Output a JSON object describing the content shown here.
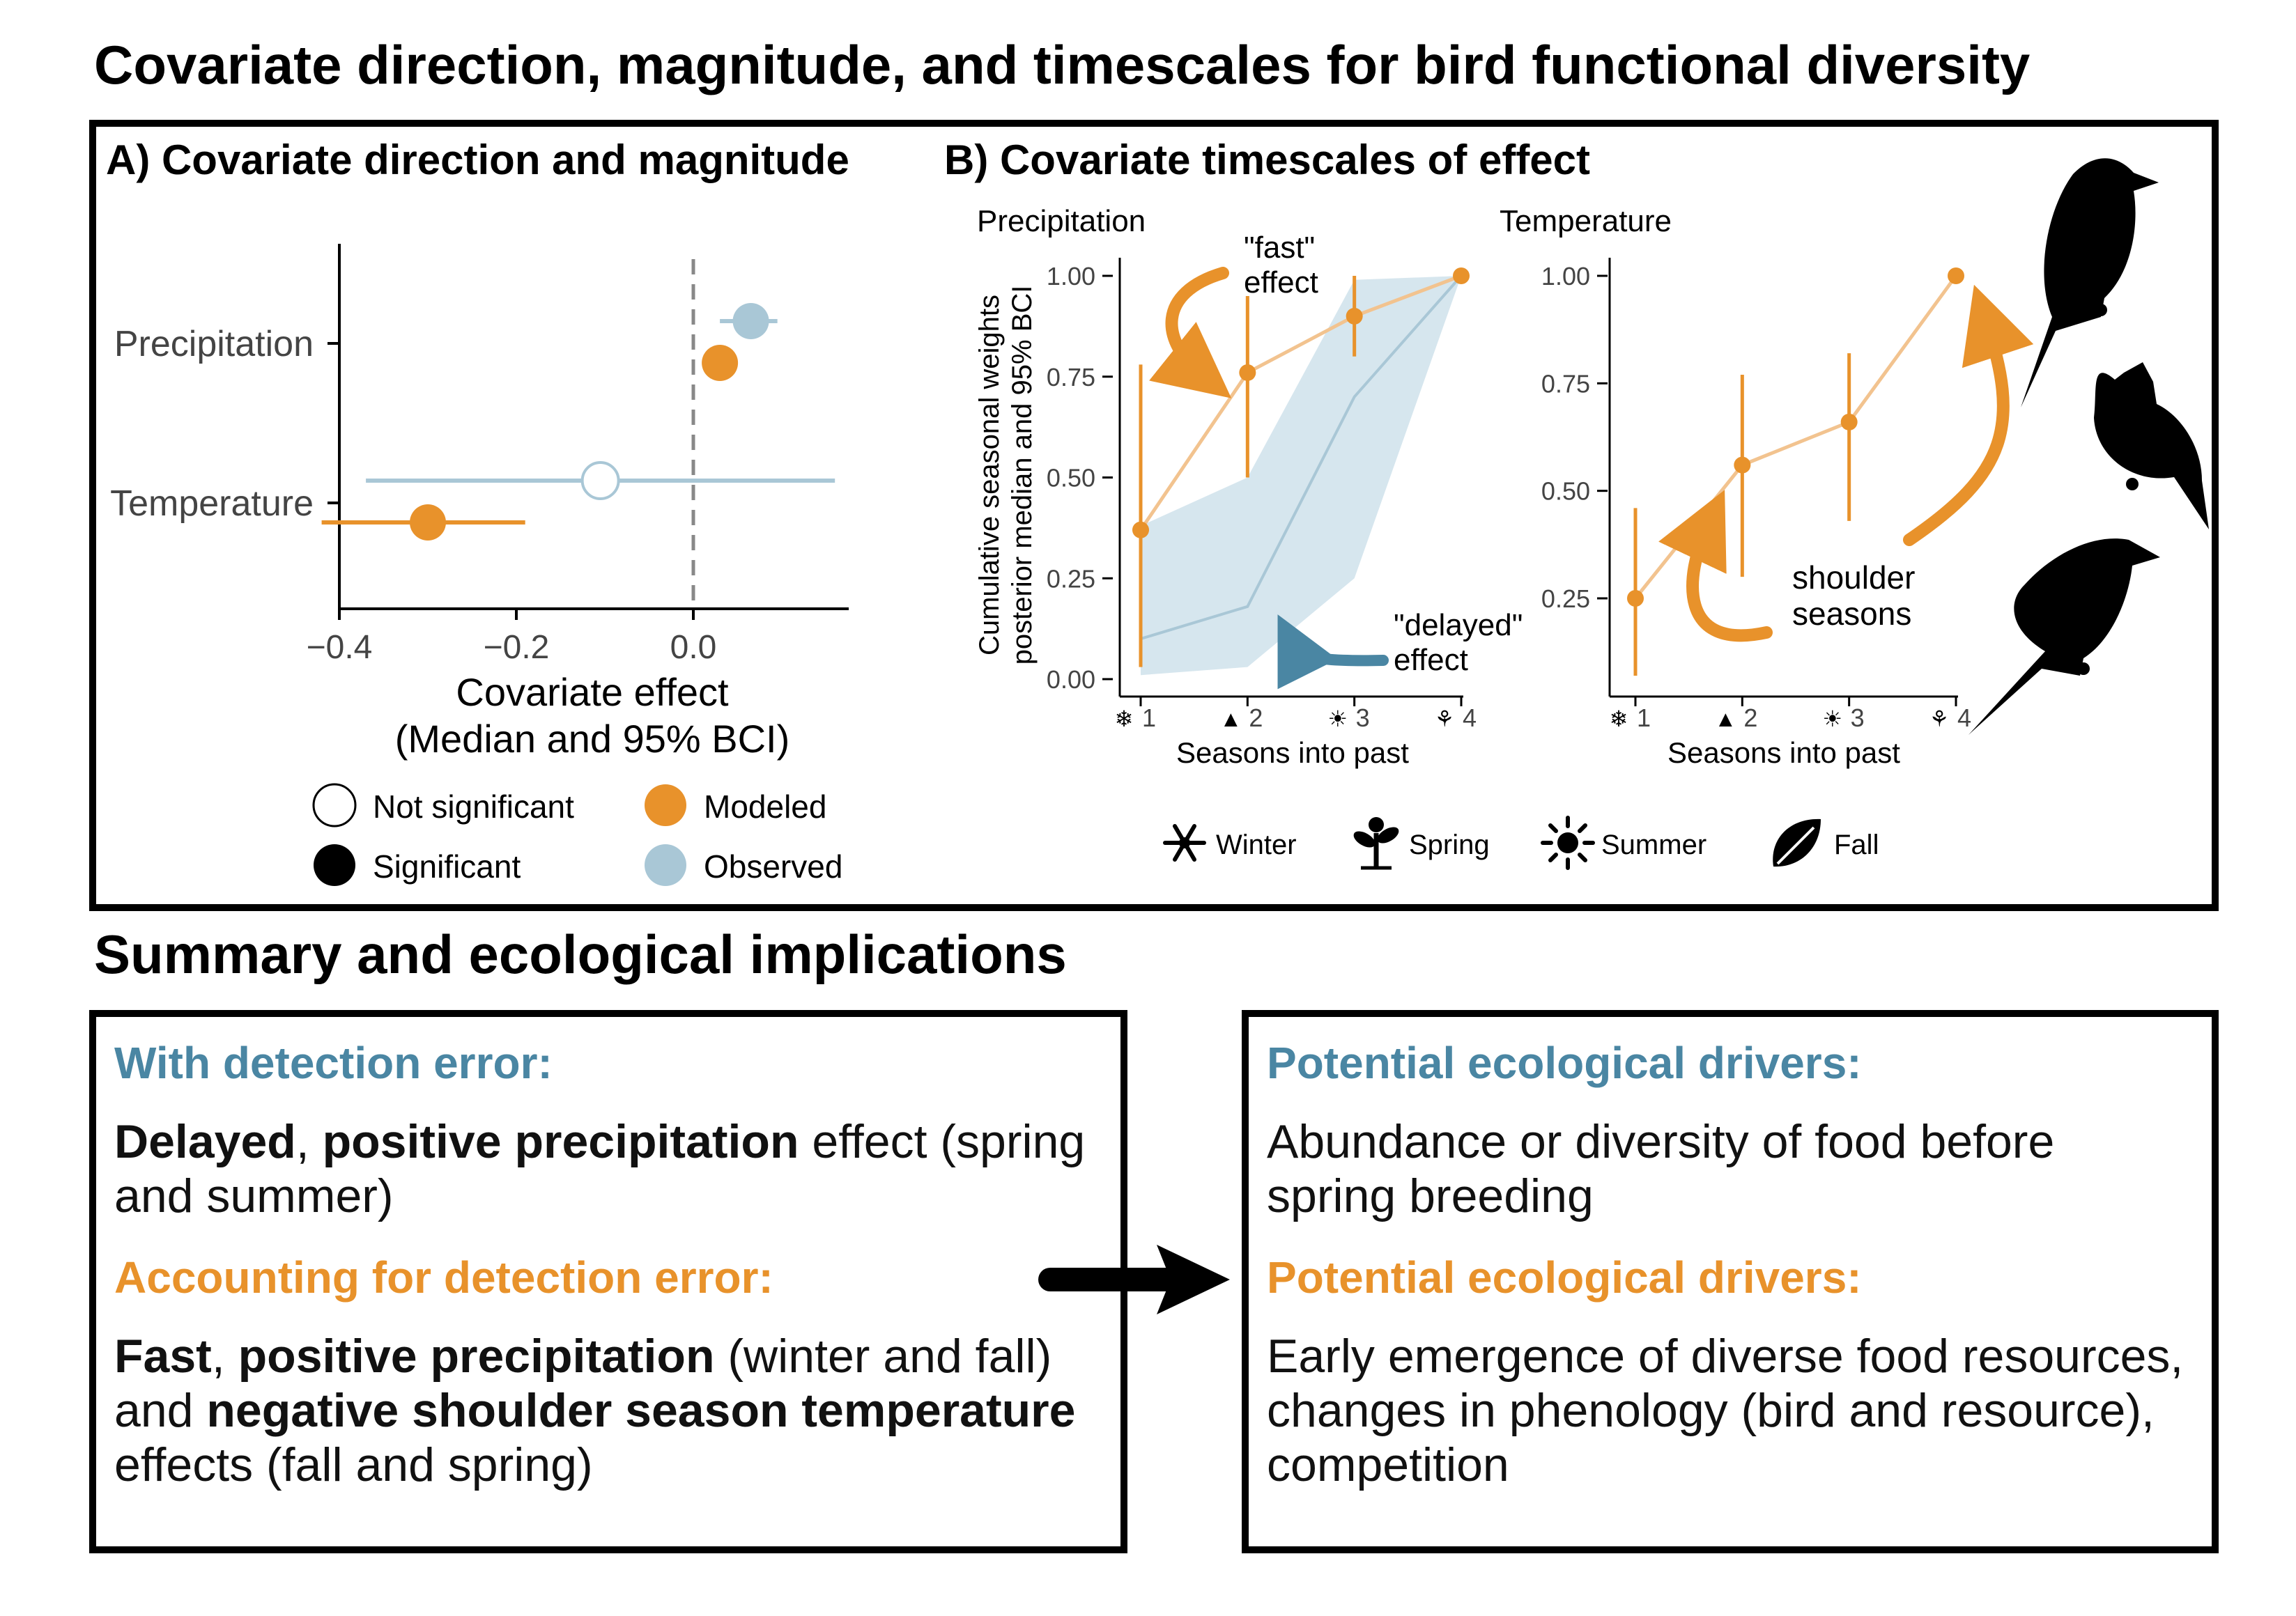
{
  "title": "Covariate direction, magnitude, and timescales for bird functional diversity",
  "panel_a": {
    "label": "A) Covariate direction and magnitude",
    "xlabel_line1": "Covariate effect",
    "xlabel_line2": "(Median and 95% BCI)",
    "legend": {
      "not_significant": "Not significant",
      "significant": "Significant",
      "modeled": "Modeled",
      "observed": "Observed"
    }
  },
  "panel_b": {
    "label": "B) Covariate timescales of effect",
    "ylabel_line1": "Cumulative seasonal weights",
    "ylabel_line2": "posterior median and 95% BCI",
    "xlabel": "Seasons into past",
    "annotations": {
      "fast_1": "\"fast\"",
      "fast_2": "effect",
      "delayed_1": "\"delayed\"",
      "delayed_2": "effect",
      "shoulder_1": "shoulder",
      "shoulder_2": "seasons"
    },
    "season_legend": [
      {
        "label": "Winter",
        "icon": "snowflake-icon"
      },
      {
        "label": "Spring",
        "icon": "sprout-icon"
      },
      {
        "label": "Summer",
        "icon": "sun-icon"
      },
      {
        "label": "Fall",
        "icon": "leaf-icon"
      }
    ]
  },
  "colors": {
    "modeled": "#e8922b",
    "observed": "#a9c7d6",
    "observed_ribbon": "#d6e6ee",
    "blue_text": "#4a86a3"
  },
  "chart_data": [
    {
      "type": "scatter",
      "id": "panel-a",
      "categories": [
        "Precipitation",
        "Temperature"
      ],
      "x_ticks": [
        "−0.4",
        "−0.2",
        "0.0"
      ],
      "xlim": [
        -0.44,
        0.1
      ],
      "reference_line": 0,
      "series": [
        {
          "name": "Observed",
          "median": [
            0.065,
            -0.105
          ],
          "lower": [
            0.03,
            -0.37
          ],
          "upper": [
            0.095,
            0.16
          ],
          "significant": [
            true,
            false
          ]
        },
        {
          "name": "Modeled",
          "median": [
            0.03,
            -0.3
          ],
          "lower": [
            0.03,
            -0.42
          ],
          "upper": [
            0.03,
            -0.19
          ],
          "significant": [
            true,
            true
          ]
        }
      ]
    },
    {
      "type": "line",
      "id": "panel-b-precipitation",
      "title": "Precipitation",
      "x": [
        1,
        2,
        3,
        4
      ],
      "x_ticks": [
        "1",
        "2",
        "3",
        "4"
      ],
      "y_ticks": [
        "0.00",
        "0.25",
        "0.50",
        "0.75",
        "1.00"
      ],
      "ylim": [
        0,
        1
      ],
      "series": [
        {
          "name": "Modeled",
          "median": [
            0.37,
            0.76,
            0.9,
            1.0
          ],
          "lower": [
            0.03,
            0.5,
            0.8,
            1.0
          ],
          "upper": [
            0.78,
            0.95,
            1.0,
            1.0
          ]
        },
        {
          "name": "Observed",
          "median": [
            0.1,
            0.18,
            0.7,
            1.0
          ],
          "lower": [
            0.01,
            0.03,
            0.25,
            1.0
          ],
          "upper": [
            0.38,
            0.5,
            0.99,
            1.0
          ]
        }
      ]
    },
    {
      "type": "line",
      "id": "panel-b-temperature",
      "title": "Temperature",
      "x": [
        1,
        2,
        3,
        4
      ],
      "x_ticks": [
        "1",
        "2",
        "3",
        "4"
      ],
      "y_ticks": [
        "0.25",
        "0.50",
        "0.75",
        "1.00"
      ],
      "ylim": [
        0.05,
        1
      ],
      "series": [
        {
          "name": "Modeled",
          "median": [
            0.25,
            0.56,
            0.66,
            1.0
          ],
          "lower": [
            0.07,
            0.3,
            0.43,
            1.0
          ],
          "upper": [
            0.46,
            0.77,
            0.82,
            1.0
          ]
        }
      ]
    }
  ],
  "summary": {
    "title": "Summary and ecological implications",
    "left": {
      "header1": "With detection error:",
      "p1": [
        {
          "text": "Delayed",
          "bold": true
        },
        {
          "text": ", ",
          "bold": false
        },
        {
          "text": "positive precipitation",
          "bold": true
        },
        {
          "text": " effect (spring and summer)",
          "bold": false
        }
      ],
      "header2": "Accounting for detection error:",
      "p2": [
        {
          "text": "Fast",
          "bold": true
        },
        {
          "text": ", ",
          "bold": false
        },
        {
          "text": "positive precipitation",
          "bold": true
        },
        {
          "text": " (winter and fall) and ",
          "bold": false
        },
        {
          "text": "negative shoulder season temperature",
          "bold": true
        },
        {
          "text": " effects (fall and spring)",
          "bold": false
        }
      ]
    },
    "right": {
      "header1": "Potential ecological drivers:",
      "p1": "Abundance or diversity of food before spring breeding",
      "header2": "Potential ecological drivers:",
      "p2": "Early emergence of diverse food resources, changes in phenology (bird and resource), competition"
    }
  }
}
